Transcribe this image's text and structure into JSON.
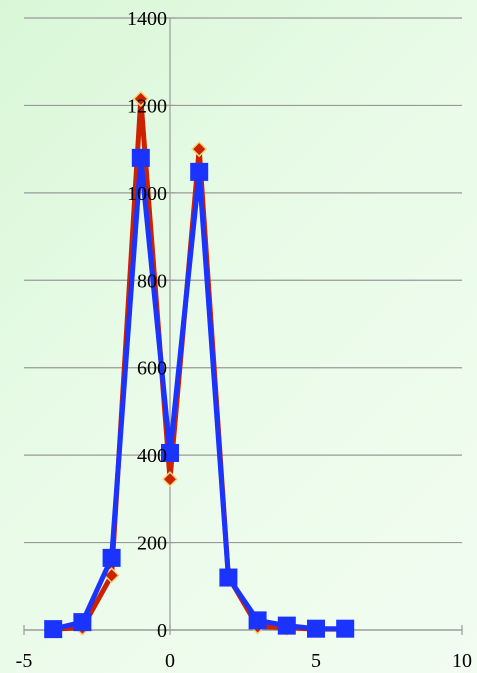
{
  "chart_data": {
    "type": "line",
    "title": "",
    "xlabel": "",
    "ylabel": "",
    "xlim": [
      -5,
      10
    ],
    "ylim": [
      0,
      1400
    ],
    "x_ticks": [
      "-5",
      "0",
      "5",
      "10"
    ],
    "y_ticks": [
      "0",
      "200",
      "400",
      "600",
      "800",
      "1000",
      "1200",
      "1400"
    ],
    "grid": "horizontal",
    "legend": "none",
    "colors": {
      "background": "#e3f9e1",
      "grid": "#999999",
      "series_a": "#cc2200",
      "series_a_marker_edge": "#f5d37a",
      "series_b": "#1a33ff"
    },
    "series": [
      {
        "marker": "diamond",
        "x": [
          -4,
          -3,
          -2,
          -1,
          0,
          1,
          2,
          3,
          4,
          5,
          6
        ],
        "y": [
          2,
          5,
          125,
          1215,
          345,
          1100,
          122,
          8,
          5,
          2,
          2
        ]
      },
      {
        "marker": "square",
        "x": [
          -4,
          -3,
          -2,
          -1,
          0,
          1,
          2,
          3,
          4,
          5,
          6
        ],
        "y": [
          2,
          18,
          165,
          1080,
          405,
          1048,
          120,
          22,
          10,
          3,
          3
        ]
      }
    ]
  }
}
